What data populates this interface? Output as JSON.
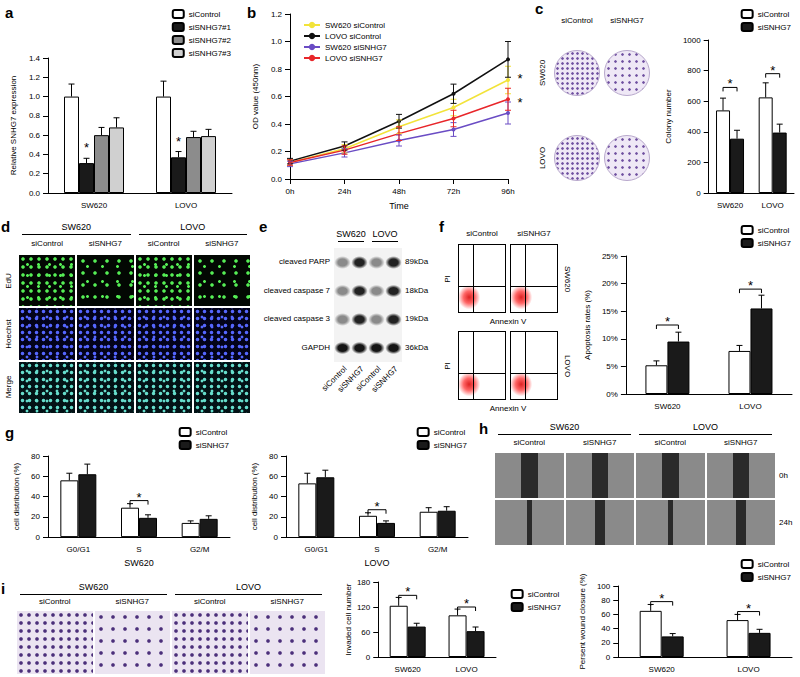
{
  "chart_data": [
    {
      "type": "bar",
      "title": "a",
      "ylabel": "Relative SNHG7 expression",
      "categories": [
        "SW620",
        "LOVO"
      ],
      "series": [
        {
          "name": "siControl",
          "color": "#ffffff",
          "values": [
            1.0,
            1.0
          ],
          "errors": [
            0.13,
            0.16
          ]
        },
        {
          "name": "siSNHG7#1",
          "color": "#1a1a1a",
          "values": [
            0.31,
            0.37
          ],
          "errors": [
            0.05,
            0.06
          ]
        },
        {
          "name": "siSNHG7#2",
          "color": "#8c8c8c",
          "values": [
            0.6,
            0.58
          ],
          "errors": [
            0.08,
            0.06
          ]
        },
        {
          "name": "siSNHG7#3",
          "color": "#d0d0d0",
          "values": [
            0.68,
            0.59
          ],
          "errors": [
            0.1,
            0.07
          ]
        }
      ],
      "ylim": [
        0,
        1.4
      ],
      "yticks": [
        {
          "value": 0,
          "label": "0.0"
        },
        0.2,
        0.4,
        0.6,
        0.8,
        {
          "value": 1,
          "label": "1.0"
        },
        1.2,
        1.4
      ],
      "grid": false,
      "legend": "top-right",
      "annotations": [
        {
          "text": "*",
          "x": "SW620",
          "series": "siSNHG7#1",
          "y": 0.4
        },
        {
          "text": "*",
          "x": "LOVO",
          "series": "siSNHG7#1",
          "y": 0.47
        }
      ]
    },
    {
      "type": "line",
      "title": "b",
      "xlabel": "Time",
      "ylabel": "OD value (450nm)",
      "categories": [
        "0h",
        "24h",
        "48h",
        "72h",
        "96h"
      ],
      "series": [
        {
          "name": "SW620 siControl",
          "color": "#f2e33a",
          "values": [
            0.12,
            0.22,
            0.38,
            0.52,
            0.72
          ],
          "errors": [
            0.02,
            0.03,
            0.05,
            0.06,
            0.1
          ]
        },
        {
          "name": "LOVO siControl",
          "color": "#111111",
          "values": [
            0.13,
            0.24,
            0.42,
            0.62,
            0.87
          ],
          "errors": [
            0.02,
            0.03,
            0.05,
            0.07,
            0.13
          ]
        },
        {
          "name": "SW620 siSNHG7",
          "color": "#6a4cc4",
          "values": [
            0.11,
            0.19,
            0.28,
            0.36,
            0.48
          ],
          "errors": [
            0.02,
            0.03,
            0.04,
            0.05,
            0.08
          ]
        },
        {
          "name": "LOVO siSNHG7",
          "color": "#e8262a",
          "values": [
            0.12,
            0.21,
            0.33,
            0.44,
            0.58
          ],
          "errors": [
            0.02,
            0.03,
            0.05,
            0.06,
            0.08
          ]
        }
      ],
      "ylim": [
        0,
        1.2
      ],
      "yticks": [
        {
          "value": 0,
          "label": "0.0"
        },
        0.2,
        0.4,
        0.6,
        0.8,
        {
          "value": 1,
          "label": "1.0"
        },
        1.2
      ],
      "grid": false,
      "legend": "top-left",
      "marker": "circle",
      "annotations": [
        {
          "text": "*",
          "x": "96h",
          "y": 0.73
        },
        {
          "text": "*",
          "x": "96h",
          "y": 0.56
        }
      ]
    },
    {
      "type": "bar",
      "ylabel": "Colony number",
      "categories": [
        "SW620",
        "LOVO"
      ],
      "series": [
        {
          "name": "siControl",
          "color": "#ffffff",
          "values": [
            540,
            625
          ],
          "errors": [
            80,
            95
          ]
        },
        {
          "name": "siSNHG7",
          "color": "#1a1a1a",
          "values": [
            355,
            395
          ],
          "errors": [
            55,
            55
          ]
        }
      ],
      "ylim": [
        0,
        1000
      ],
      "yticks": [
        0,
        200,
        400,
        600,
        800,
        1000
      ],
      "grid": false,
      "legend": "top-right",
      "annotations": [
        {
          "text": "*",
          "x": "SW620",
          "y": 690
        },
        {
          "text": "*",
          "x": "LOVO",
          "y": 780
        }
      ]
    },
    {
      "type": "bar",
      "ylabel": "Apoptosis rates (%)",
      "categories": [
        "SW620",
        "LOVO"
      ],
      "series": [
        {
          "name": "siControl",
          "color": "#ffffff",
          "values": [
            5.2,
            7.8
          ],
          "errors": [
            0.8,
            1.0
          ]
        },
        {
          "name": "siSNHG7",
          "color": "#1a1a1a",
          "values": [
            9.5,
            15.5
          ],
          "errors": [
            1.7,
            2.4
          ]
        }
      ],
      "ylim": [
        0,
        25
      ],
      "yticks": [
        {
          "value": 0,
          "label": "0%"
        },
        {
          "value": 5,
          "label": "5%"
        },
        {
          "value": 10,
          "label": "10%"
        },
        {
          "value": 15,
          "label": "15%"
        },
        {
          "value": 20,
          "label": "20%"
        },
        {
          "value": 25,
          "label": "25%"
        }
      ],
      "grid": false,
      "legend": "top-right",
      "annotations": [
        {
          "text": "*",
          "x": "SW620",
          "y": 12.5
        },
        {
          "text": "*",
          "x": "LOVO",
          "y": 19
        }
      ]
    },
    {
      "type": "bar",
      "title": "g",
      "xlabel": "SW620",
      "ylabel": "cell distribution (%)",
      "categories": [
        "G0/G1",
        "S",
        "G2/M"
      ],
      "series": [
        {
          "name": "siControl",
          "color": "#ffffff",
          "values": [
            56,
            29,
            14
          ],
          "errors": [
            7,
            4,
            2
          ]
        },
        {
          "name": "siSNHG7",
          "color": "#1a1a1a",
          "values": [
            62,
            19,
            18
          ],
          "errors": [
            10,
            3,
            3
          ]
        }
      ],
      "ylim": [
        0,
        80
      ],
      "yticks": [
        0,
        20,
        40,
        60,
        80
      ],
      "grid": false,
      "legend": "top-right",
      "annotations": [
        {
          "text": "*",
          "x": "S",
          "y": 36
        }
      ]
    },
    {
      "type": "bar",
      "xlabel": "LOVO",
      "ylabel": "cell distribution (%)",
      "categories": [
        "G0/G1",
        "S",
        "G2/M"
      ],
      "series": [
        {
          "name": "siControl",
          "color": "#ffffff",
          "values": [
            53,
            21,
            25
          ],
          "errors": [
            10,
            3,
            4
          ]
        },
        {
          "name": "siSNHG7",
          "color": "#1a1a1a",
          "values": [
            59,
            14,
            26
          ],
          "errors": [
            7,
            2,
            4
          ]
        }
      ],
      "ylim": [
        0,
        80
      ],
      "yticks": [
        0,
        20,
        40,
        60,
        80
      ],
      "grid": false,
      "legend": "top-right",
      "annotations": [
        {
          "text": "*",
          "x": "S",
          "y": 27
        }
      ]
    },
    {
      "type": "bar",
      "ylabel": "Persent wound closure (%)",
      "categories": [
        "SW620",
        "LOVO"
      ],
      "series": [
        {
          "name": "siControl",
          "color": "#ffffff",
          "values": [
            65,
            52
          ],
          "errors": [
            9,
            8
          ]
        },
        {
          "name": "siSNHG7",
          "color": "#1a1a1a",
          "values": [
            29,
            34
          ],
          "errors": [
            4,
            5
          ]
        }
      ],
      "ylim": [
        0,
        100
      ],
      "yticks": [
        0,
        20,
        40,
        60,
        80,
        100
      ],
      "grid": false,
      "legend": "top-right",
      "annotations": [
        {
          "text": "*",
          "x": "SW620",
          "y": 78
        },
        {
          "text": "*",
          "x": "LOVO",
          "y": 64
        }
      ]
    },
    {
      "type": "bar",
      "ylabel": "Invaded cell number",
      "categories": [
        "SW620",
        "LOVO"
      ],
      "series": [
        {
          "name": "siControl",
          "color": "#ffffff",
          "values": [
            123,
            100
          ],
          "errors": [
            20,
            15
          ]
        },
        {
          "name": "siSNHG7",
          "color": "#1a1a1a",
          "values": [
            73,
            62
          ],
          "errors": [
            8,
            10
          ]
        }
      ],
      "ylim": [
        0,
        180
      ],
      "yticks": [
        0,
        60,
        120,
        180
      ],
      "grid": false,
      "legend": "top-right",
      "annotations": [
        {
          "text": "*",
          "x": "SW620",
          "y": 148
        },
        {
          "text": "*",
          "x": "LOVO",
          "y": 120
        }
      ]
    }
  ],
  "images": [
    {
      "title": "c",
      "columns": [
        "siControl",
        "siSNHG7"
      ],
      "rows": [
        "SW620",
        "LOVO"
      ]
    },
    {
      "title": "d",
      "groups": [
        "SW620",
        "LOVO"
      ],
      "columns": [
        "siControl",
        "siSNHG7",
        "siControl",
        "siSNHG7"
      ],
      "rows": [
        "EdU",
        "Hoechst",
        "Merge"
      ]
    },
    {
      "title": "e",
      "groups": [
        "SW620",
        "LOVO"
      ],
      "columns": [
        "siControl",
        "siSNHG7",
        "siControl",
        "siSNHG7"
      ],
      "rows": [
        "cleaved PARP",
        "cleaved caspase 7",
        "cleaved caspase 3",
        "GAPDH"
      ],
      "sizes": [
        "89kDa",
        "18kDa",
        "19kDa",
        "36kDa"
      ]
    },
    {
      "title": "f",
      "columns": [
        "siControl",
        "siSNHG7"
      ],
      "rows": [
        "SW620",
        "LOVO"
      ],
      "y_label": "PI",
      "x_label": "Annexin V"
    },
    {
      "title": "h",
      "groups": [
        "SW620",
        "LOVO"
      ],
      "columns": [
        "siControl",
        "siSNHG7",
        "siControl",
        "siSNHG7"
      ],
      "rows": [
        "0h",
        "24h"
      ]
    },
    {
      "title": "i",
      "groups": [
        "SW620",
        "LOVO"
      ],
      "columns": [
        "siControl",
        "siSNHG7",
        "siControl",
        "siSNHG7"
      ]
    }
  ]
}
